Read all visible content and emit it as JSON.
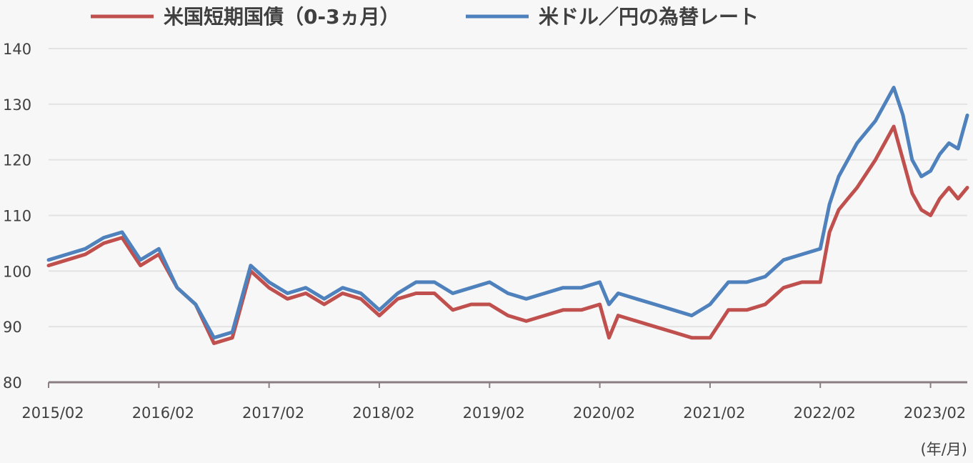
{
  "chart_data": {
    "type": "line",
    "title": "",
    "xlabel": "",
    "ylabel": "",
    "x_unit_label": "(年/月)",
    "ylim": [
      80,
      140
    ],
    "yticks": [
      80,
      90,
      100,
      110,
      120,
      130,
      140
    ],
    "xticks": [
      "2015/02",
      "2016/02",
      "2017/02",
      "2018/02",
      "2019/02",
      "2020/02",
      "2021/02",
      "2022/02",
      "2023/02"
    ],
    "xlim": [
      "2015/02",
      "2023/06"
    ],
    "grid": true,
    "legend": "top",
    "series": [
      {
        "name": "米国短期国債（0-3ヵ月）",
        "color": "#c0504d",
        "x": [
          "2015/02",
          "2015/04",
          "2015/06",
          "2015/08",
          "2015/10",
          "2015/12",
          "2016/02",
          "2016/04",
          "2016/06",
          "2016/08",
          "2016/10",
          "2016/12",
          "2017/02",
          "2017/04",
          "2017/06",
          "2017/08",
          "2017/10",
          "2017/12",
          "2018/02",
          "2018/04",
          "2018/06",
          "2018/08",
          "2018/10",
          "2018/12",
          "2019/02",
          "2019/04",
          "2019/06",
          "2019/08",
          "2019/10",
          "2019/12",
          "2020/02",
          "2020/03",
          "2020/04",
          "2020/06",
          "2020/08",
          "2020/10",
          "2020/12",
          "2021/02",
          "2021/04",
          "2021/06",
          "2021/08",
          "2021/10",
          "2021/12",
          "2022/02",
          "2022/03",
          "2022/04",
          "2022/05",
          "2022/06",
          "2022/08",
          "2022/09",
          "2022/10",
          "2022/11",
          "2022/12",
          "2023/01",
          "2023/02",
          "2023/03",
          "2023/04",
          "2023/05",
          "2023/06"
        ],
        "values": [
          101,
          102,
          103,
          105,
          106,
          101,
          103,
          97,
          94,
          87,
          88,
          100,
          97,
          95,
          96,
          94,
          96,
          95,
          92,
          95,
          96,
          96,
          93,
          94,
          94,
          92,
          91,
          92,
          93,
          93,
          94,
          88,
          92,
          91,
          90,
          89,
          88,
          88,
          93,
          93,
          94,
          97,
          98,
          98,
          107,
          111,
          113,
          115,
          120,
          123,
          126,
          120,
          114,
          111,
          110,
          113,
          115,
          113,
          115
        ]
      },
      {
        "name": "米ドル／円の為替レート",
        "color": "#4f81bd",
        "x": [
          "2015/02",
          "2015/04",
          "2015/06",
          "2015/08",
          "2015/10",
          "2015/12",
          "2016/02",
          "2016/04",
          "2016/06",
          "2016/08",
          "2016/10",
          "2016/12",
          "2017/02",
          "2017/04",
          "2017/06",
          "2017/08",
          "2017/10",
          "2017/12",
          "2018/02",
          "2018/04",
          "2018/06",
          "2018/08",
          "2018/10",
          "2018/12",
          "2019/02",
          "2019/04",
          "2019/06",
          "2019/08",
          "2019/10",
          "2019/12",
          "2020/02",
          "2020/03",
          "2020/04",
          "2020/06",
          "2020/08",
          "2020/10",
          "2020/12",
          "2021/02",
          "2021/04",
          "2021/06",
          "2021/08",
          "2021/10",
          "2021/12",
          "2022/02",
          "2022/03",
          "2022/04",
          "2022/05",
          "2022/06",
          "2022/08",
          "2022/09",
          "2022/10",
          "2022/11",
          "2022/12",
          "2023/01",
          "2023/02",
          "2023/03",
          "2023/04",
          "2023/05",
          "2023/06"
        ],
        "values": [
          102,
          103,
          104,
          106,
          107,
          102,
          104,
          97,
          94,
          88,
          89,
          101,
          98,
          96,
          97,
          95,
          97,
          96,
          93,
          96,
          98,
          98,
          96,
          97,
          98,
          96,
          95,
          96,
          97,
          97,
          98,
          94,
          96,
          95,
          94,
          93,
          92,
          94,
          98,
          98,
          99,
          102,
          103,
          104,
          112,
          117,
          120,
          123,
          127,
          130,
          133,
          128,
          120,
          117,
          118,
          121,
          123,
          122,
          128
        ]
      }
    ]
  }
}
